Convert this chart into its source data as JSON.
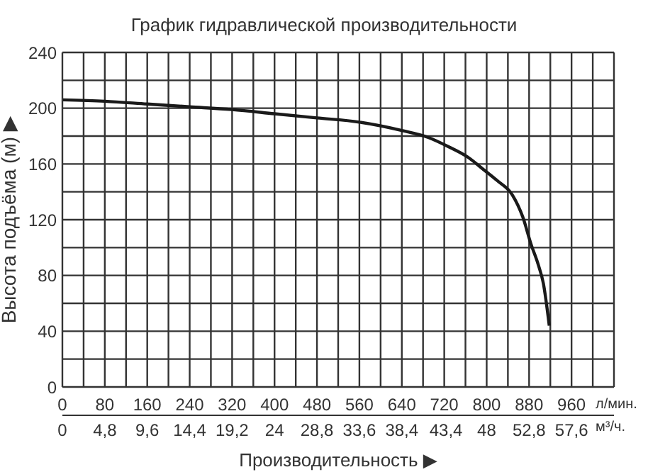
{
  "chart_data": {
    "type": "line",
    "title": "График гидравлической производительности",
    "xlabel": "Производительность ▶",
    "ylabel": "Высота подъёма (м) ▶",
    "annotations": [
      "л/мин.",
      "м³/ч."
    ],
    "x": [
      0,
      80,
      160,
      240,
      320,
      400,
      480,
      560,
      640,
      690,
      730,
      764,
      794,
      820,
      848,
      868,
      884,
      897,
      907,
      918
    ],
    "series": [
      {
        "color": "#1a1a1a",
        "values": [
          206,
          205,
          203,
          201,
          199,
          196,
          193,
          190,
          184,
          179,
          172,
          165,
          156,
          148,
          138,
          122,
          102,
          88,
          74,
          44
        ]
      }
    ],
    "xlim": [
      0,
      1040
    ],
    "xticks": [
      0,
      {
        "value": 40,
        "label": null
      },
      80,
      {
        "value": 120,
        "label": null
      },
      160,
      {
        "value": 200,
        "label": null
      },
      240,
      {
        "value": 280,
        "label": null
      },
      320,
      {
        "value": 360,
        "label": null
      },
      400,
      {
        "value": 440,
        "label": null
      },
      480,
      {
        "value": 520,
        "label": null
      },
      560,
      {
        "value": 600,
        "label": null
      },
      640,
      {
        "value": 680,
        "label": null
      },
      720,
      {
        "value": 760,
        "label": null
      },
      800,
      {
        "value": 840,
        "label": null
      },
      880,
      {
        "value": 920,
        "label": null
      },
      960,
      {
        "value": 1000,
        "label": null
      },
      {
        "value": 1040,
        "label": null
      }
    ],
    "x2lim": [
      0,
      62.4
    ],
    "x2ticks": [
      0,
      {
        "value": 4.8,
        "label": "4,8"
      },
      {
        "value": 9.6,
        "label": "9,6"
      },
      {
        "value": 14.4,
        "label": "14,4"
      },
      {
        "value": 19.2,
        "label": "19,2"
      },
      24,
      {
        "value": 28.8,
        "label": "28,8"
      },
      {
        "value": 33.6,
        "label": "33,6"
      },
      {
        "value": 38.4,
        "label": "38,4"
      },
      {
        "value": 43.4,
        "label": "43,4"
      },
      48,
      {
        "value": 52.8,
        "label": "52,8"
      },
      {
        "value": 57.6,
        "label": "57,6"
      }
    ],
    "ylim": [
      0,
      240
    ],
    "yticks": [
      0,
      {
        "value": 20,
        "label": null
      },
      40,
      {
        "value": 60,
        "label": null
      },
      80,
      {
        "value": 100,
        "label": null
      },
      120,
      {
        "value": 140,
        "label": null
      },
      160,
      {
        "value": 180,
        "label": null
      },
      200,
      {
        "value": 220,
        "label": null
      },
      240
    ],
    "grid": true,
    "legend": false,
    "marker": "none",
    "line_style": "solid"
  }
}
